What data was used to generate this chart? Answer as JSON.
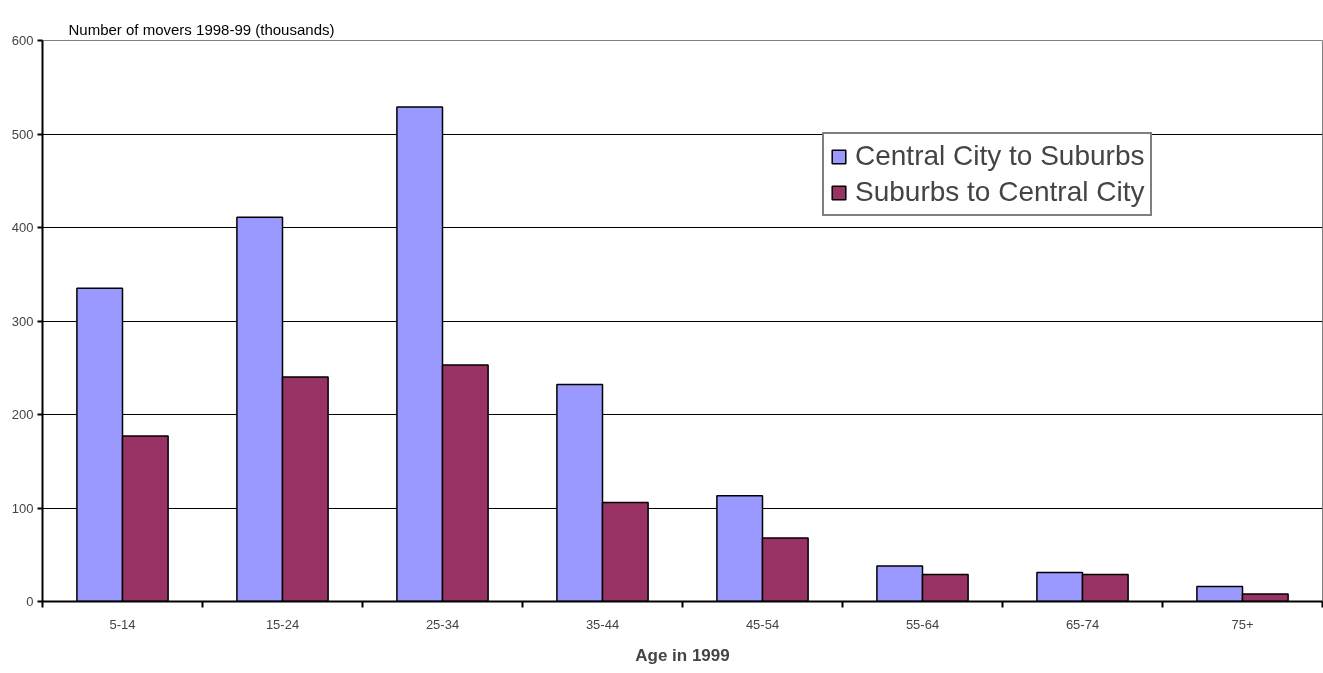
{
  "chart_data": {
    "type": "bar",
    "ylabel": "Number of movers 1998-99 (thousands)",
    "xlabel": "Age in 1999",
    "categories": [
      "5-14",
      "15-24",
      "25-34",
      "35-44",
      "45-54",
      "55-64",
      "65-74",
      "75+"
    ],
    "series": [
      {
        "name": "Central City to Suburbs",
        "color": "#9999ff",
        "values": [
          335,
          411,
          529,
          232,
          113,
          38,
          31,
          16
        ]
      },
      {
        "name": "Suburbs to Central City",
        "color": "#993366",
        "values": [
          177,
          240,
          253,
          106,
          68,
          29,
          29,
          8
        ]
      }
    ],
    "ylim": [
      0,
      600
    ],
    "yticks": [
      0,
      100,
      200,
      300,
      400,
      500,
      600
    ],
    "grid": "y",
    "legend": "top right"
  }
}
